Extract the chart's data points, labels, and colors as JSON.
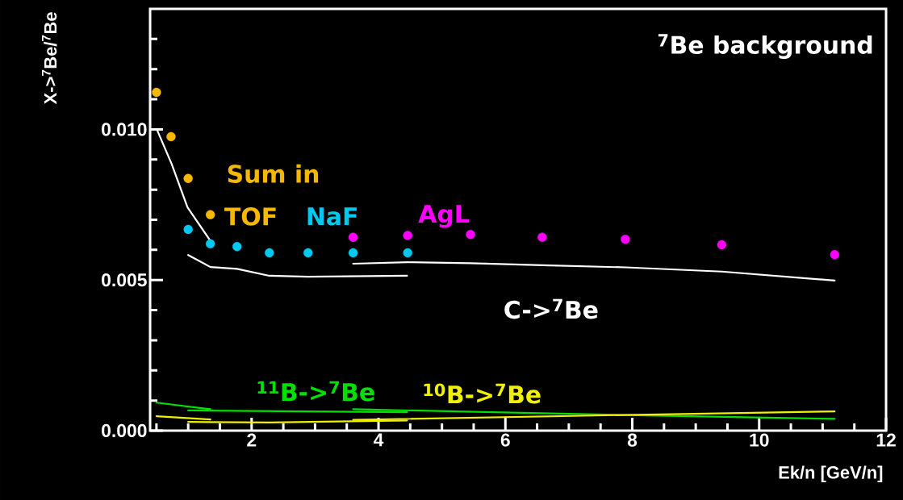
{
  "chart_data": {
    "type": "scatter",
    "title": "$^{7}$Be background",
    "xlabel": "Ek/n [GeV/n]",
    "ylabel": "X->$^{7}$Be/$^{7}$Be",
    "annotations": [
      "Sum in"
    ],
    "xlim": [
      0.4,
      12
    ],
    "ylim": [
      0,
      0.014
    ],
    "xticks": [
      {
        "value": 0.5,
        "label": null
      },
      {
        "value": 1,
        "label": null
      },
      {
        "value": 1.5,
        "label": null
      },
      2,
      {
        "value": 2.5,
        "label": null
      },
      {
        "value": 3,
        "label": null
      },
      {
        "value": 3.5,
        "label": null
      },
      4,
      {
        "value": 4.5,
        "label": null
      },
      {
        "value": 5,
        "label": null
      },
      {
        "value": 5.5,
        "label": null
      },
      6,
      {
        "value": 6.5,
        "label": null
      },
      {
        "value": 7,
        "label": null
      },
      {
        "value": 7.5,
        "label": null
      },
      8,
      {
        "value": 8.5,
        "label": null
      },
      {
        "value": 9,
        "label": null
      },
      {
        "value": 9.5,
        "label": null
      },
      10,
      {
        "value": 10.5,
        "label": null
      },
      {
        "value": 11,
        "label": null
      },
      {
        "value": 11.5,
        "label": null
      },
      12
    ],
    "yticks": [
      {
        "value": 0,
        "label": "0.000"
      },
      {
        "value": 0.001,
        "label": null
      },
      {
        "value": 0.002,
        "label": null
      },
      {
        "value": 0.003,
        "label": null
      },
      {
        "value": 0.004,
        "label": null
      },
      {
        "value": 0.005,
        "label": "0.005"
      },
      {
        "value": 0.006,
        "label": null
      },
      {
        "value": 0.007,
        "label": null
      },
      {
        "value": 0.008,
        "label": null
      },
      {
        "value": 0.009,
        "label": null
      },
      {
        "value": 0.01,
        "label": "0.010"
      },
      {
        "value": 0.011,
        "label": null
      },
      {
        "value": 0.012,
        "label": null
      },
      {
        "value": 0.013,
        "label": null
      }
    ],
    "grid": false,
    "series": [
      {
        "name": "TOF",
        "marker": "circle",
        "color": "#f5b800",
        "x": [
          0.5,
          0.73,
          1.0,
          1.35
        ],
        "values": [
          0.01123,
          0.00976,
          0.00837,
          0.00717
        ]
      },
      {
        "name": "NaF",
        "marker": "circle",
        "color": "#00c8f0",
        "x": [
          1.0,
          1.35,
          1.77,
          2.28,
          2.89,
          3.6,
          4.46
        ],
        "values": [
          0.00668,
          0.0062,
          0.00611,
          0.0059,
          0.0059,
          0.0059,
          0.0059
        ]
      },
      {
        "name": "AgL",
        "marker": "circle",
        "color": "#ff00ff",
        "x": [
          3.6,
          4.46,
          5.45,
          6.58,
          7.89,
          9.41,
          11.19
        ],
        "values": [
          0.00642,
          0.00648,
          0.00651,
          0.00642,
          0.00635,
          0.00617,
          0.00584
        ]
      },
      {
        "type": "line",
        "marker": "none",
        "color": "#ffffff",
        "x": [
          0.51,
          0.74,
          0.99,
          1.35
        ],
        "values": [
          0.00998,
          0.00885,
          0.00741,
          0.0063
        ]
      },
      {
        "type": "line",
        "marker": "none",
        "color": "#ffffff",
        "x": [
          1.0,
          1.35,
          1.77,
          2.28,
          2.89,
          4.45
        ],
        "values": [
          0.00583,
          0.00543,
          0.00537,
          0.00514,
          0.00511,
          0.00514
        ]
      },
      {
        "name": "C->$^{7}$Be",
        "type": "line",
        "marker": "none",
        "color": "#ffffff",
        "x": [
          3.6,
          4.46,
          5.45,
          6.58,
          7.89,
          9.41,
          11.19
        ],
        "values": [
          0.00554,
          0.00559,
          0.00556,
          0.00549,
          0.00542,
          0.00528,
          0.00498
        ]
      },
      {
        "type": "line",
        "marker": "none",
        "color": "#00e000",
        "x": [
          0.5,
          1.35
        ],
        "values": [
          0.00093,
          0.00071
        ]
      },
      {
        "name": "$^{11}$B->$^{7}$Be",
        "type": "line",
        "marker": "none",
        "color": "#00e000",
        "x": [
          1.0,
          4.45
        ],
        "values": [
          0.00067,
          0.00061
        ]
      },
      {
        "type": "line",
        "marker": "none",
        "color": "#00e000",
        "x": [
          3.6,
          7.89,
          11.19
        ],
        "values": [
          0.00071,
          0.00052,
          0.00039
        ]
      },
      {
        "type": "line",
        "marker": "none",
        "color": "#f0f000",
        "x": [
          0.5,
          1.35
        ],
        "values": [
          0.00048,
          0.00037
        ]
      },
      {
        "type": "line",
        "marker": "none",
        "color": "#f0f000",
        "x": [
          1.0,
          2.28,
          4.45
        ],
        "values": [
          0.00029,
          0.00027,
          0.00034
        ]
      },
      {
        "name": "$^{10}$B->$^{7}$Be",
        "type": "line",
        "marker": "none",
        "color": "#f0f000",
        "x": [
          3.6,
          7.89,
          11.19
        ],
        "values": [
          0.00036,
          0.00052,
          0.00064
        ]
      }
    ]
  }
}
